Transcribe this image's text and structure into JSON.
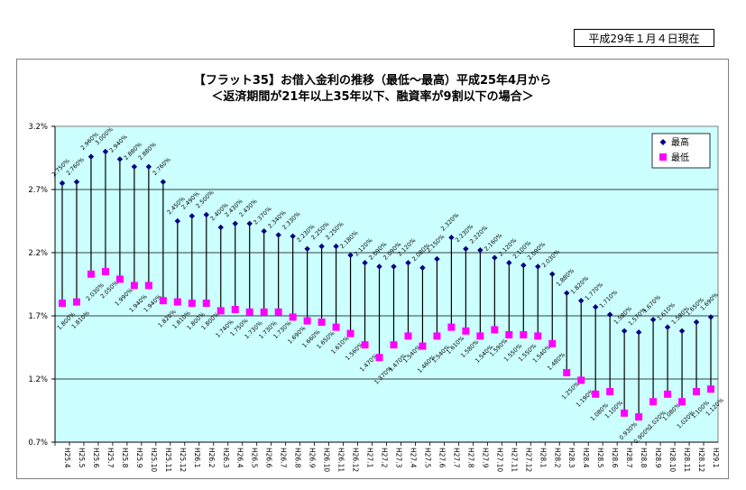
{
  "header": {
    "date_label": "平成29年１月４日現在"
  },
  "chart_data": {
    "type": "high-low",
    "title_line1": "【フラット35】お借入金利の推移（最低～最高）平成25年4月から",
    "title_line2": "＜返済期間が21年以上35年以下、融資率が9割以下の場合＞",
    "ylim": [
      0.7,
      3.2
    ],
    "yticks": [
      "3.2%",
      "2.7%",
      "2.2%",
      "1.7%",
      "1.2%",
      "0.7%"
    ],
    "ytick_values": [
      3.2,
      2.7,
      2.2,
      1.7,
      1.2,
      0.7
    ],
    "legend": {
      "high": "最高",
      "low": "最低",
      "position": "top-right"
    },
    "colors": {
      "plot_bg": "#ccffff",
      "high": "#000080",
      "low": "#ff00ff",
      "line": "#000000"
    },
    "categories": [
      "H25.4",
      "H25.5",
      "H25.6",
      "H25.7",
      "H25.8",
      "H25.9",
      "H25.10",
      "H25.11",
      "H25.12",
      "H26.1",
      "H26.2",
      "H26.3",
      "H26.4",
      "H26.5",
      "H26.6",
      "H26.7",
      "H26.8",
      "H26.9",
      "H26.10",
      "H26.11",
      "H26.12",
      "H27.1",
      "H27.2",
      "H27.3",
      "H27.4",
      "H27.5",
      "H27.6",
      "H27.7",
      "H27.8",
      "H27.9",
      "H27.10",
      "H27.11",
      "H27.12",
      "H28.1",
      "H28.2",
      "H28.3",
      "H28.4",
      "H28.5",
      "H28.6",
      "H28.7",
      "H28.8",
      "H28.9",
      "H28.10",
      "H28.11",
      "H28.12",
      "H29.1"
    ],
    "series": [
      {
        "name": "最高",
        "values": [
          2.75,
          2.76,
          2.96,
          3.0,
          2.94,
          2.88,
          2.88,
          2.76,
          2.45,
          2.49,
          2.5,
          2.4,
          2.43,
          2.43,
          2.37,
          2.34,
          2.33,
          2.23,
          2.25,
          2.25,
          2.18,
          2.12,
          2.09,
          2.09,
          2.12,
          2.08,
          2.15,
          2.32,
          2.23,
          2.22,
          2.16,
          2.12,
          2.1,
          2.09,
          2.03,
          1.88,
          1.82,
          1.77,
          1.71,
          1.58,
          1.57,
          1.67,
          1.61,
          1.58,
          1.65,
          1.69
        ],
        "labels": [
          "2.750%",
          "2.760%",
          "2.960%",
          "3.000%",
          "2.940%",
          "2.880%",
          "2.880%",
          "2.760%",
          "2.450%",
          "2.490%",
          "2.500%",
          "2.400%",
          "2.430%",
          "2.430%",
          "2.370%",
          "2.340%",
          "2.330%",
          "2.230%",
          "2.250%",
          "2.250%",
          "2.180%",
          "2.120%",
          "2.090%",
          "2.090%",
          "2.120%",
          "2.080%",
          "2.150%",
          "2.320%",
          "2.230%",
          "2.220%",
          "2.160%",
          "2.120%",
          "2.100%",
          "2.090%",
          "2.030%",
          "1.880%",
          "1.820%",
          "1.770%",
          "1.710%",
          "1.580%",
          "1.570%",
          "1.670%",
          "1.610%",
          "1.580%",
          "1.650%",
          "1.690%"
        ]
      },
      {
        "name": "最低",
        "values": [
          1.8,
          1.81,
          2.03,
          2.05,
          1.99,
          1.94,
          1.94,
          1.82,
          1.81,
          1.8,
          1.8,
          1.74,
          1.75,
          1.73,
          1.73,
          1.73,
          1.69,
          1.66,
          1.65,
          1.61,
          1.56,
          1.47,
          1.37,
          1.47,
          1.54,
          1.46,
          1.54,
          1.61,
          1.58,
          1.54,
          1.59,
          1.55,
          1.55,
          1.54,
          1.48,
          1.25,
          1.19,
          1.08,
          1.1,
          0.93,
          0.9,
          1.02,
          1.08,
          1.02,
          1.1,
          1.12
        ],
        "labels": [
          "1.800%",
          "1.810%",
          "2.030%",
          "2.050%",
          "1.990%",
          "1.940%",
          "1.940%",
          "1.820%",
          "1.810%",
          "1.800%",
          "1.800%",
          "1.740%",
          "1.750%",
          "1.730%",
          "1.730%",
          "1.730%",
          "1.690%",
          "1.660%",
          "1.650%",
          "1.610%",
          "1.560%",
          "1.470%",
          "1.370%",
          "1.470%",
          "1.540%",
          "1.460%",
          "1.540%",
          "1.610%",
          "1.580%",
          "1.540%",
          "1.590%",
          "1.550%",
          "1.550%",
          "1.540%",
          "1.480%",
          "1.250%",
          "1.190%",
          "1.080%",
          "1.100%",
          "0.930%",
          "0.900%",
          "1.020%",
          "1.080%",
          "1.020%",
          "1.100%",
          "1.120%"
        ]
      }
    ]
  }
}
